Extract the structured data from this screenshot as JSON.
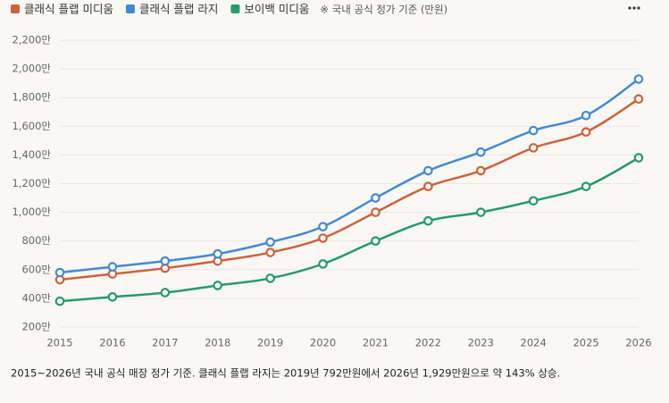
{
  "chart_data": {
    "type": "line",
    "note": "※ 국내 공식 정가 기준 (만원)",
    "caption": "2015~2026년 국내 공식 매장 정가 기준. 클래식 플랩 라지는 2019년 792만원에서 2026년 1,929만원으로 약 143% 상승.",
    "categories": [
      "2015",
      "2016",
      "2017",
      "2018",
      "2019",
      "2020",
      "2021",
      "2022",
      "2023",
      "2024",
      "2025",
      "2026"
    ],
    "series": [
      {
        "name": "클래식 플랩 미디움",
        "color": "#d0613a",
        "values": [
          530,
          570,
          610,
          660,
          720,
          820,
          1000,
          1180,
          1290,
          1450,
          1560,
          1790
        ]
      },
      {
        "name": "클래식 플랩 라지",
        "color": "#4489d2",
        "values": [
          580,
          620,
          660,
          710,
          792,
          900,
          1100,
          1290,
          1420,
          1570,
          1675,
          1929
        ]
      },
      {
        "name": "보이백 미디움",
        "color": "#279a6c",
        "values": [
          380,
          410,
          440,
          490,
          540,
          640,
          800,
          940,
          1000,
          1080,
          1180,
          1380
        ]
      }
    ],
    "ylim": [
      200,
      2200
    ],
    "yticks": [
      {
        "value": 200,
        "label": "200만"
      },
      {
        "value": 400,
        "label": "400만"
      },
      {
        "value": 600,
        "label": "600만"
      },
      {
        "value": 800,
        "label": "800만"
      },
      {
        "value": 1000,
        "label": "1,000만"
      },
      {
        "value": 1200,
        "label": "1,200만"
      },
      {
        "value": 1400,
        "label": "1,400만"
      },
      {
        "value": 1600,
        "label": "1,600만"
      },
      {
        "value": 1800,
        "label": "1,800만"
      },
      {
        "value": 2000,
        "label": "2,000만"
      },
      {
        "value": 2200,
        "label": "2,200만"
      }
    ],
    "grid": true
  }
}
